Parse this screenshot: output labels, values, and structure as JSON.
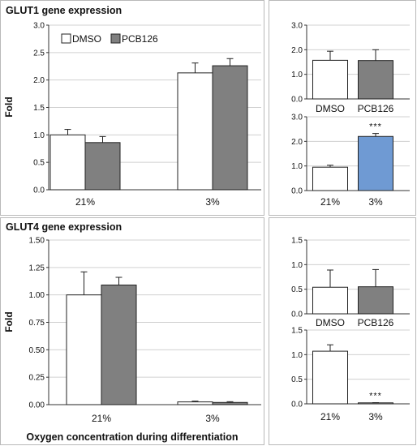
{
  "colors": {
    "dmso": "#ffffff",
    "pcb126": "#808080",
    "highlight": "#6f9ad3",
    "stroke": "#222222",
    "frame": "#b9b9b9"
  },
  "figure": {
    "glut1_title": "GLUT1 gene expression",
    "glut4_title": "GLUT4 gene expression",
    "xaxis_label": "Oxygen concentration during differentiation",
    "ylabel_top": "Fold",
    "ylabel_bottom": "Fold"
  },
  "legend": {
    "dmso_label": "DMSO",
    "pcb126_label": "PCB126"
  },
  "chart_data": [
    {
      "id": "glut1_main",
      "type": "bar",
      "title": "GLUT1 gene expression",
      "ylabel": "Fold",
      "categories": [
        "21%",
        "3%"
      ],
      "ylim": [
        0,
        3.0
      ],
      "yticks": [
        "0.0",
        "0.5",
        "1.0",
        "1.5",
        "2.0",
        "2.5",
        "3.0"
      ],
      "series": [
        {
          "name": "DMSO",
          "values": [
            1.0,
            2.13
          ],
          "errors": [
            0.1,
            0.18
          ]
        },
        {
          "name": "PCB126",
          "values": [
            0.86,
            2.26
          ],
          "errors": [
            0.11,
            0.13
          ]
        }
      ],
      "legend": "top-left"
    },
    {
      "id": "glut1_treatment",
      "type": "bar",
      "categories": [
        "DMSO",
        "PCB126"
      ],
      "ylim": [
        0,
        3.0
      ],
      "yticks": [
        "0.0",
        "1.0",
        "2.0",
        "3.0"
      ],
      "values": [
        1.57,
        1.56
      ],
      "errors": [
        0.37,
        0.44
      ],
      "annotations": [
        "",
        ""
      ]
    },
    {
      "id": "glut1_oxygen",
      "type": "bar",
      "categories": [
        "21%",
        "3%"
      ],
      "ylim": [
        0,
        3.0
      ],
      "yticks": [
        "0.0",
        "1.0",
        "2.0",
        "3.0"
      ],
      "values": [
        0.95,
        2.2
      ],
      "errors": [
        0.08,
        0.12
      ],
      "annotations": [
        "",
        "***"
      ]
    },
    {
      "id": "glut4_main",
      "type": "bar",
      "title": "GLUT4 gene expression",
      "ylabel": "Fold",
      "xlabel": "Oxygen concentration during differentiation",
      "categories": [
        "21%",
        "3%"
      ],
      "ylim": [
        0,
        1.5
      ],
      "yticks": [
        "0.00",
        "0.25",
        "0.50",
        "0.75",
        "1.00",
        "1.25",
        "1.50"
      ],
      "series": [
        {
          "name": "DMSO",
          "values": [
            1.0,
            0.025
          ],
          "errors": [
            0.21,
            0.007
          ]
        },
        {
          "name": "PCB126",
          "values": [
            1.09,
            0.02
          ],
          "errors": [
            0.07,
            0.007
          ]
        }
      ]
    },
    {
      "id": "glut4_treatment",
      "type": "bar",
      "categories": [
        "DMSO",
        "PCB126"
      ],
      "ylim": [
        0,
        1.5
      ],
      "yticks": [
        "0.0",
        "0.5",
        "1.0",
        "1.5"
      ],
      "values": [
        0.54,
        0.55
      ],
      "errors": [
        0.35,
        0.35
      ],
      "annotations": [
        "",
        ""
      ]
    },
    {
      "id": "glut4_oxygen",
      "type": "bar",
      "categories": [
        "21%",
        "3%"
      ],
      "ylim": [
        0,
        1.5
      ],
      "yticks": [
        "0.0",
        "0.5",
        "1.0",
        "1.5"
      ],
      "values": [
        1.07,
        0.02
      ],
      "errors": [
        0.13,
        0.004
      ],
      "annotations": [
        "",
        "***"
      ]
    }
  ]
}
